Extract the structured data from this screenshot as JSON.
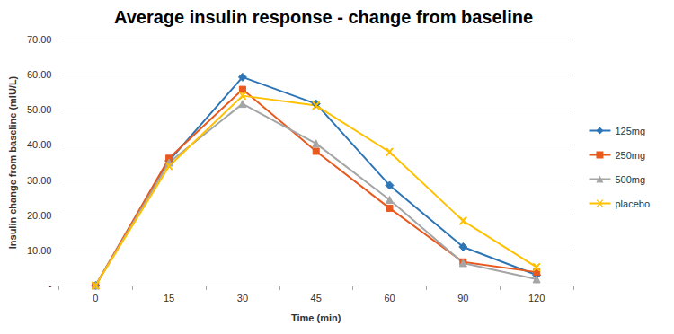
{
  "chart_data": {
    "type": "line",
    "title": "Average insulin response - change from baseline",
    "x_label": "Time (min)",
    "y_label": "Insulin change from baseline (mIU/L)",
    "categories": [
      "0",
      "15",
      "30",
      "45",
      "60",
      "90",
      "120"
    ],
    "series": [
      {
        "name": "125mg",
        "color": "#2e75b6",
        "marker": "diamond",
        "line_style": "solid",
        "values": [
          0,
          35.5,
          59.3,
          51.7,
          28.5,
          11.0,
          3.0
        ]
      },
      {
        "name": "250mg",
        "color": "#e8591e",
        "marker": "square",
        "line_style": "solid",
        "values": [
          0,
          36.2,
          55.8,
          38.2,
          22.0,
          6.7,
          3.8
        ]
      },
      {
        "name": "500mg",
        "color": "#a5a5a5",
        "marker": "triangle",
        "line_style": "solid",
        "values": [
          0,
          35.0,
          51.7,
          40.4,
          24.4,
          6.4,
          1.8
        ]
      },
      {
        "name": "placebo",
        "color": "#ffc000",
        "marker": "x",
        "line_style": "solid",
        "values": [
          0,
          34.0,
          54.0,
          51.2,
          38.0,
          18.4,
          5.2
        ]
      }
    ],
    "ylim": [
      0,
      70
    ],
    "yticks": [
      {
        "value": 0,
        "label": "-"
      },
      {
        "value": 10,
        "label": "10.00"
      },
      {
        "value": 20,
        "label": "20.00"
      },
      {
        "value": 30,
        "label": "30.00"
      },
      {
        "value": 40,
        "label": "40.00"
      },
      {
        "value": 50,
        "label": "50.00"
      },
      {
        "value": 60,
        "label": "60.00"
      },
      {
        "value": 70,
        "label": "70.00"
      }
    ],
    "grid": true,
    "legend": "right"
  }
}
